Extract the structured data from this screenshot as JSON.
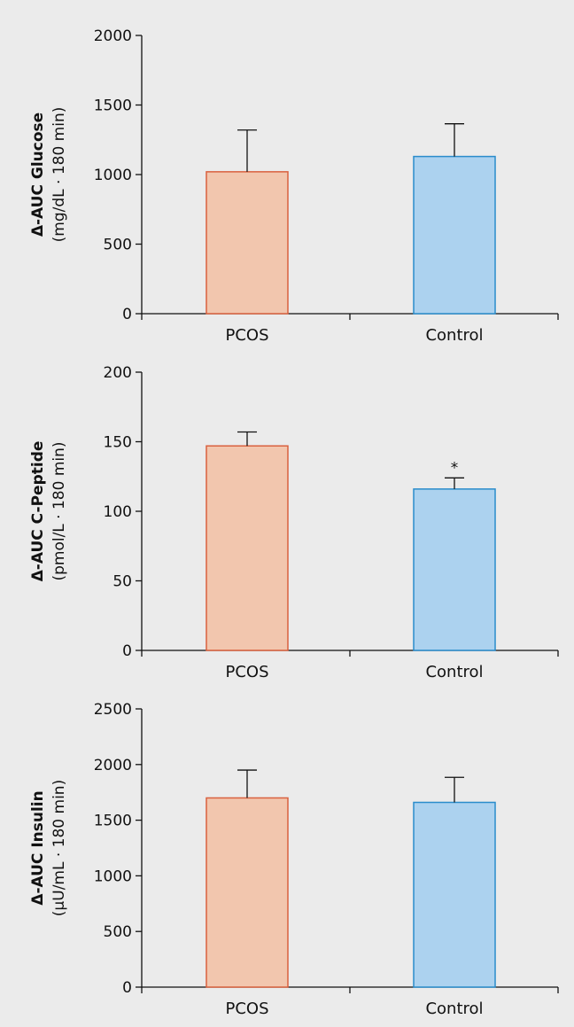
{
  "colors": {
    "background": "#ebebeb",
    "pcos_fill": "#f2c6ae",
    "pcos_stroke": "#d9613f",
    "control_fill": "#acd2ef",
    "control_stroke": "#2a8ccb",
    "axis": "#111111"
  },
  "chart_data": [
    {
      "type": "bar",
      "categories": [
        "PCOS",
        "Control"
      ],
      "values": [
        1020,
        1130
      ],
      "errors": [
        300,
        235
      ],
      "annotations": [
        "",
        ""
      ],
      "ylim": [
        0,
        2000
      ],
      "yticks": [
        "0",
        "500",
        "1000",
        "1500",
        "2000"
      ],
      "ytick_values": [
        0,
        500,
        1000,
        1500,
        2000
      ],
      "ylabel": "Δ-AUC Glucose",
      "yunit": "(mg/dL · 180 min)",
      "xlabel": "",
      "grid": false,
      "legend": "none"
    },
    {
      "type": "bar",
      "categories": [
        "PCOS",
        "Control"
      ],
      "values": [
        147,
        116
      ],
      "errors": [
        10,
        8
      ],
      "annotations": [
        "",
        "*"
      ],
      "ylim": [
        0,
        200
      ],
      "yticks": [
        "0",
        "50",
        "100",
        "150",
        "200"
      ],
      "ytick_values": [
        0,
        50,
        100,
        150,
        200
      ],
      "ylabel": "Δ-AUC C-Peptide",
      "yunit": "(pmol/L · 180 min)",
      "xlabel": "",
      "grid": false,
      "legend": "none"
    },
    {
      "type": "bar",
      "categories": [
        "PCOS",
        "Control"
      ],
      "values": [
        1700,
        1660
      ],
      "errors": [
        250,
        225
      ],
      "annotations": [
        "",
        ""
      ],
      "ylim": [
        0,
        2500
      ],
      "yticks": [
        "0",
        "500",
        "1000",
        "1500",
        "2000",
        "2500"
      ],
      "ytick_values": [
        0,
        500,
        1000,
        1500,
        2000,
        2500
      ],
      "ylabel": "Δ-AUC Insulin",
      "yunit": "(µU/mL · 180 min)",
      "xlabel": "",
      "grid": false,
      "legend": "none"
    }
  ]
}
